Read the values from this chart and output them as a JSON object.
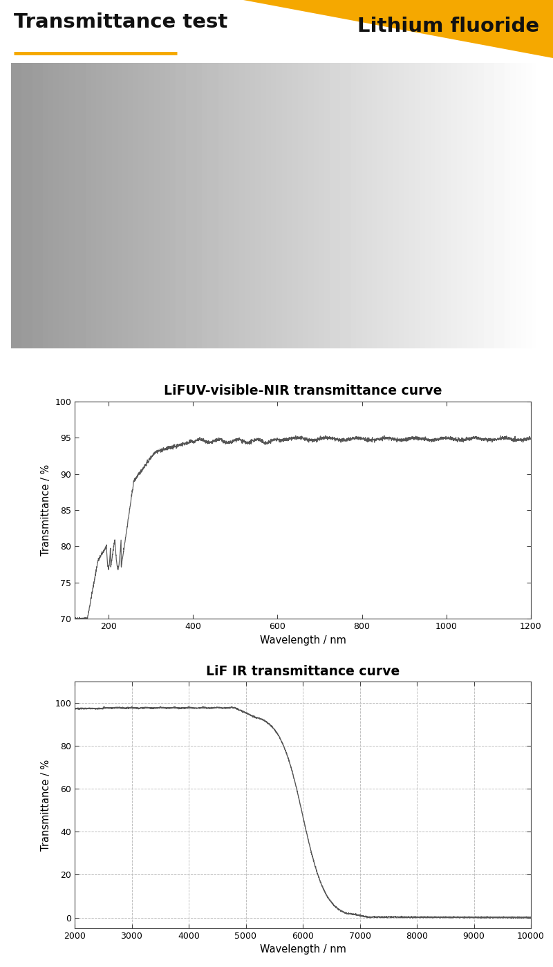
{
  "title_left": "Transmittance test",
  "title_right": "Lithium fluoride",
  "title_bg_color": "#F5A800",
  "title_underline_color": "#F5A800",
  "plot1_title": "LiFUV-visible-NIR transmittance curve",
  "plot1_xlabel": "Wavelength / nm",
  "plot1_ylabel": "Transmittance / %",
  "plot1_xlim": [
    120,
    1200
  ],
  "plot1_ylim": [
    70,
    100
  ],
  "plot1_xticks": [
    200,
    400,
    600,
    800,
    1000,
    1200
  ],
  "plot1_yticks": [
    70,
    75,
    80,
    85,
    90,
    95,
    100
  ],
  "plot2_title": "LiF IR transmittance curve",
  "plot2_xlabel": "Wavelength / nm",
  "plot2_ylabel": "Transmittance / %",
  "plot2_xlim": [
    2000,
    10000
  ],
  "plot2_ylim": [
    -5,
    110
  ],
  "plot2_xticks": [
    2000,
    3000,
    4000,
    5000,
    6000,
    7000,
    8000,
    9000,
    10000
  ],
  "plot2_yticks": [
    0,
    20,
    40,
    60,
    80,
    100
  ],
  "line_color": "#555555",
  "grid_color": "#bbbbbb",
  "bg_color": "#ffffff"
}
